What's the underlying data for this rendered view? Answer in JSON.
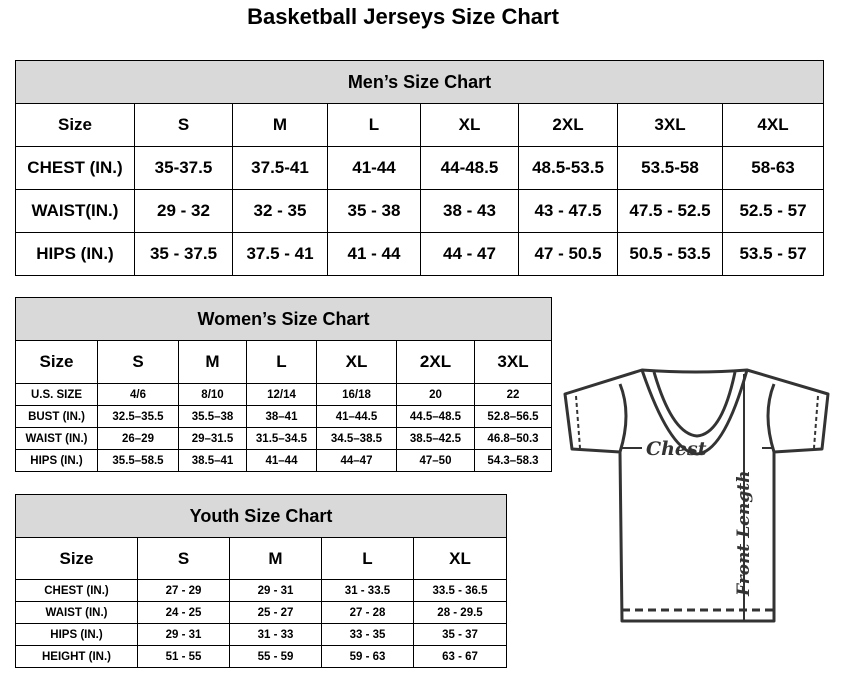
{
  "title": "Basketball Jerseys Size Chart",
  "men": {
    "title": "Men’s Size Chart",
    "header": [
      "Size",
      "S",
      "M",
      "L",
      "XL",
      "2XL",
      "3XL",
      "4XL"
    ],
    "rows": [
      [
        "CHEST (IN.)",
        "35-37.5",
        "37.5-41",
        "41-44",
        "44-48.5",
        "48.5-53.5",
        "53.5-58",
        "58-63"
      ],
      [
        "WAIST(IN.)",
        "29 - 32",
        "32 - 35",
        "35 - 38",
        "38 - 43",
        "43 - 47.5",
        "47.5 - 52.5",
        "52.5 - 57"
      ],
      [
        "HIPS (IN.)",
        "35 - 37.5",
        "37.5 - 41",
        "41 - 44",
        "44 - 47",
        "47 - 50.5",
        "50.5 - 53.5",
        "53.5 - 57"
      ]
    ]
  },
  "women": {
    "title": "Women’s Size Chart",
    "header": [
      "Size",
      "S",
      "M",
      "L",
      "XL",
      "2XL",
      "3XL"
    ],
    "rows": [
      [
        "U.S. SIZE",
        "4/6",
        "8/10",
        "12/14",
        "16/18",
        "20",
        "22"
      ],
      [
        "BUST (IN.)",
        "32.5–35.5",
        "35.5–38",
        "38–41",
        "41–44.5",
        "44.5–48.5",
        "52.8–56.5"
      ],
      [
        "WAIST (IN.)",
        "26–29",
        "29–31.5",
        "31.5–34.5",
        "34.5–38.5",
        "38.5–42.5",
        "46.8–50.3"
      ],
      [
        "HIPS (IN.)",
        "35.5–58.5",
        "38.5–41",
        "41–44",
        "44–47",
        "47–50",
        "54.3–58.3"
      ]
    ]
  },
  "youth": {
    "title": "Youth Size Chart",
    "header": [
      "Size",
      "S",
      "M",
      "L",
      "XL"
    ],
    "rows": [
      [
        "CHEST (IN.)",
        "27 - 29",
        "29 - 31",
        "31 - 33.5",
        "33.5 - 36.5"
      ],
      [
        "WAIST (IN.)",
        "24 - 25",
        "25 - 27",
        "27 - 28",
        "28 - 29.5"
      ],
      [
        "HIPS (IN.)",
        "29 - 31",
        "31 - 33",
        "33 - 35",
        "35 - 37"
      ],
      [
        "HEIGHT (IN.)",
        "51 - 55",
        "55 - 59",
        "59 - 63",
        "63 - 67"
      ]
    ]
  },
  "diagram": {
    "chest_label": "Chest",
    "length_label": "Front Length"
  }
}
